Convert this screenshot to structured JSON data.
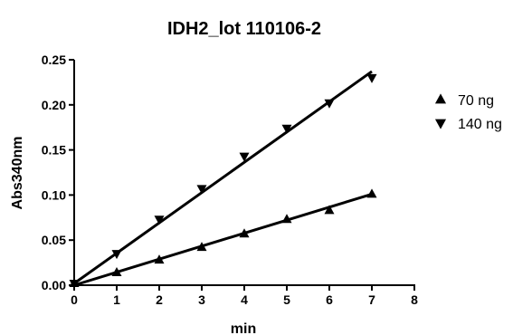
{
  "chart_data": {
    "type": "scatter",
    "title": "IDH2_lot 110106-2",
    "xlabel": "min",
    "ylabel": "Abs340nm",
    "xlim": [
      0,
      8
    ],
    "ylim": [
      0,
      0.25
    ],
    "x_ticks": [
      "0",
      "1",
      "2",
      "3",
      "4",
      "5",
      "6",
      "7",
      "8"
    ],
    "y_ticks": [
      "0.00",
      "0.05",
      "0.10",
      "0.15",
      "0.20",
      "0.25"
    ],
    "legend_position": "right",
    "grid": false,
    "series": [
      {
        "name": "70 ng",
        "marker": "triangle-up",
        "color": "#000000",
        "x": [
          0,
          1,
          2,
          3,
          4,
          5,
          6,
          7
        ],
        "y": [
          0.002,
          0.014,
          0.028,
          0.042,
          0.057,
          0.073,
          0.083,
          0.101
        ],
        "fit": [
          [
            0,
            0.0
          ],
          [
            7,
            0.101
          ]
        ]
      },
      {
        "name": "140 ng",
        "marker": "triangle-down",
        "color": "#000000",
        "x": [
          0,
          1,
          2,
          3,
          4,
          5,
          6,
          7
        ],
        "y": [
          0.002,
          0.035,
          0.073,
          0.107,
          0.143,
          0.174,
          0.202,
          0.23
        ],
        "fit": [
          [
            0,
            0.002
          ],
          [
            7,
            0.237
          ]
        ]
      }
    ]
  }
}
